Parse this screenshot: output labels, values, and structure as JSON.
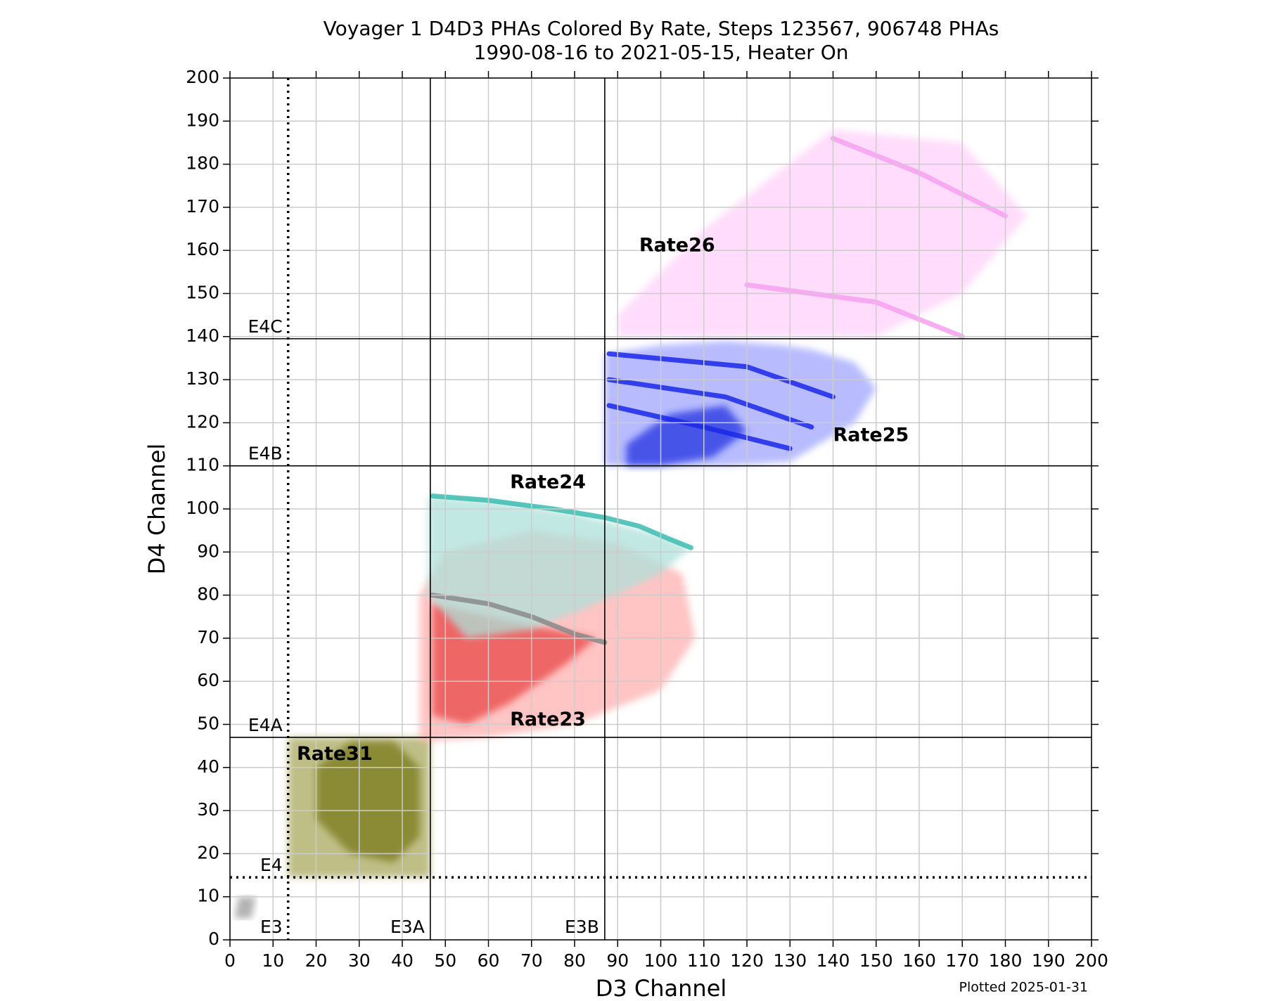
{
  "chart_data": {
    "type": "density",
    "title": "Voyager 1 D4D3 PHAs Colored By Rate, Steps 123567, 906748 PHAs",
    "subtitle": "1990-08-16 to 2021-05-15, Heater On",
    "xlabel": "D3 Channel",
    "ylabel": "D4 Channel",
    "footnote": "Plotted 2025-01-31",
    "xlim": [
      0,
      200
    ],
    "ylim": [
      0,
      200
    ],
    "xticks": [
      0,
      10,
      20,
      30,
      40,
      50,
      60,
      70,
      80,
      90,
      100,
      110,
      120,
      130,
      140,
      150,
      160,
      170,
      180,
      190,
      200
    ],
    "yticks": [
      0,
      10,
      20,
      30,
      40,
      50,
      60,
      70,
      80,
      90,
      100,
      110,
      120,
      130,
      140,
      150,
      160,
      170,
      180,
      190,
      200
    ],
    "grid": true,
    "regions": [
      {
        "color": "#aaa860",
        "x": [
          13.5,
          46.5,
          46.5,
          13.5
        ],
        "y": [
          14.5,
          14.5,
          47,
          47
        ]
      },
      {
        "color": "#7a7a1a",
        "x": [
          20,
          28,
          38,
          44,
          44,
          38,
          28,
          20
        ],
        "y": [
          28,
          20,
          18,
          24,
          40,
          46,
          46,
          40
        ]
      },
      {
        "color": "#999999",
        "x": [
          1,
          5,
          6,
          2
        ],
        "y": [
          5,
          5,
          10,
          10
        ]
      },
      {
        "color": "#ffb0b0",
        "x": [
          44,
          60,
          80,
          100,
          108,
          105,
          90,
          70,
          50,
          44
        ],
        "y": [
          46,
          47,
          50,
          58,
          70,
          85,
          92,
          95,
          90,
          80
        ]
      },
      {
        "color": "#e84848",
        "x": [
          47,
          55,
          65,
          78,
          85,
          75,
          60,
          47
        ],
        "y": [
          52,
          50,
          55,
          64,
          70,
          72,
          75,
          78
        ]
      },
      {
        "color": "#aee0da",
        "x": [
          46,
          60,
          80,
          100,
          107,
          100,
          85,
          70,
          55,
          46
        ],
        "y": [
          103,
          102,
          99,
          94,
          91,
          85,
          78,
          72,
          70,
          80
        ]
      },
      {
        "color": "#a0a6ff",
        "x": [
          87,
          100,
          115,
          130,
          145,
          150,
          145,
          135,
          128,
          115,
          100,
          87
        ],
        "y": [
          110,
          110,
          110,
          111,
          120,
          128,
          134,
          137,
          138,
          139,
          138,
          136
        ]
      },
      {
        "color": "#2030e0",
        "x": [
          92,
          100,
          112,
          120,
          115,
          102,
          92
        ],
        "y": [
          110,
          110,
          112,
          118,
          124,
          122,
          115
        ]
      },
      {
        "color": "#ffd0fa",
        "x": [
          90,
          120,
          150,
          170,
          185,
          170,
          140,
          110,
          90
        ],
        "y": [
          140,
          140,
          140,
          150,
          168,
          185,
          188,
          165,
          145
        ]
      }
    ],
    "curves": [
      {
        "color": "#8a8a8a",
        "x": [
          47,
          60,
          70,
          80,
          87
        ],
        "y": [
          80,
          78,
          75,
          71,
          69
        ]
      },
      {
        "color": "#3cbcb0",
        "x": [
          47,
          60,
          75,
          87,
          95,
          102,
          107
        ],
        "y": [
          103,
          102,
          100,
          98,
          96,
          93,
          91
        ]
      },
      {
        "color": "#1a28e8",
        "x": [
          88,
          120,
          140
        ],
        "y": [
          136,
          133,
          126
        ]
      },
      {
        "color": "#1a28e8",
        "x": [
          88,
          115,
          135
        ],
        "y": [
          130,
          126,
          119
        ]
      },
      {
        "color": "#1a28e8",
        "x": [
          88,
          110,
          130
        ],
        "y": [
          124,
          119,
          114
        ]
      },
      {
        "color": "#f6a0ee",
        "x": [
          140,
          160,
          180
        ],
        "y": [
          186,
          178,
          168
        ]
      },
      {
        "color": "#f6a0ee",
        "x": [
          120,
          150,
          170
        ],
        "y": [
          152,
          148,
          140
        ]
      }
    ],
    "thresholds": [
      {
        "label": "E3",
        "axis": "x",
        "value": 13.5,
        "style": "dotted"
      },
      {
        "label": "E3A",
        "axis": "x",
        "value": 46.5,
        "style": "solid"
      },
      {
        "label": "E3B",
        "axis": "x",
        "value": 87,
        "style": "solid"
      },
      {
        "label": "E4",
        "axis": "y",
        "value": 14.5,
        "style": "dotted"
      },
      {
        "label": "E4A",
        "axis": "y",
        "value": 47,
        "style": "solid"
      },
      {
        "label": "E4B",
        "axis": "y",
        "value": 110,
        "style": "solid"
      },
      {
        "label": "E4C",
        "axis": "y",
        "value": 139.5,
        "style": "solid"
      }
    ],
    "annotations": [
      {
        "text": "Rate26",
        "x": 95,
        "y": 161
      },
      {
        "text": "Rate25",
        "x": 140,
        "y": 117
      },
      {
        "text": "Rate24",
        "x": 65,
        "y": 106
      },
      {
        "text": "Rate23",
        "x": 65,
        "y": 51
      },
      {
        "text": "Rate31",
        "x": 15.5,
        "y": 43
      }
    ]
  }
}
